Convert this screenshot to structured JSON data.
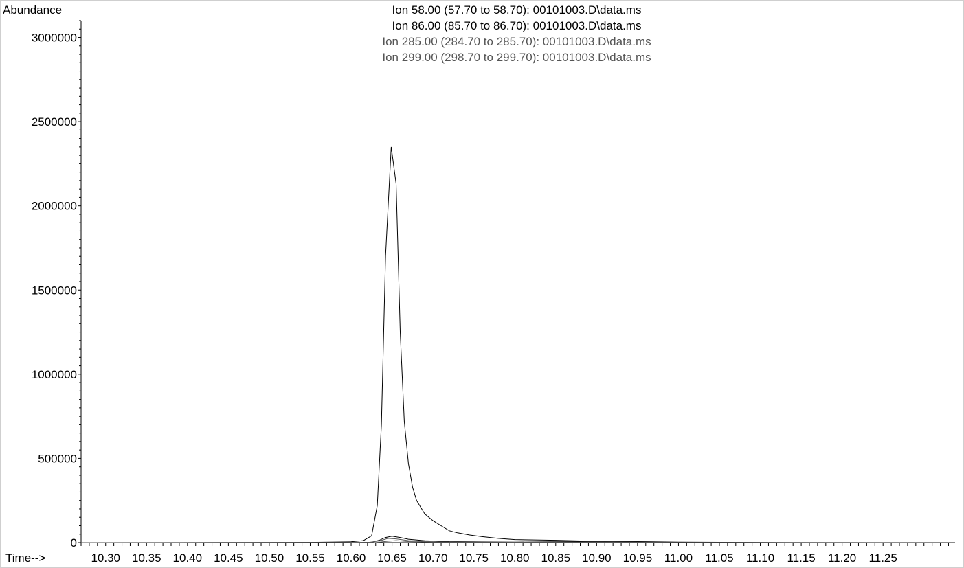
{
  "chart_data": {
    "type": "line",
    "ylabel": "Abundance",
    "xlabel": "Time-->",
    "xlim": [
      10.27,
      11.338
    ],
    "ylim": [
      0,
      3100000
    ],
    "x_ticks": [
      "10.30",
      "10.35",
      "10.40",
      "10.45",
      "10.50",
      "10.55",
      "10.60",
      "10.65",
      "10.70",
      "10.75",
      "10.80",
      "10.85",
      "10.90",
      "10.95",
      "11.00",
      "11.05",
      "11.10",
      "11.15",
      "11.20",
      "11.25"
    ],
    "y_ticks": [
      "0",
      "500000",
      "1000000",
      "1500000",
      "2000000",
      "2500000",
      "3000000"
    ],
    "grid": false,
    "legend_entries": [
      {
        "label": "Ion  58.00 (57.70 to 58.70): 00101003.D\\data.ms",
        "color": "#000000"
      },
      {
        "label": "Ion  86.00 (85.70 to 86.70): 00101003.D\\data.ms",
        "color": "#000000"
      },
      {
        "label": "Ion 285.00 (284.70 to 285.70): 00101003.D\\data.ms",
        "color": "#555555"
      },
      {
        "label": "Ion 299.00 (298.70 to 299.70): 00101003.D\\data.ms",
        "color": "#555555"
      }
    ],
    "series": [
      {
        "color": "#000000",
        "points": [
          [
            10.27,
            0
          ],
          [
            10.4,
            500
          ],
          [
            10.5,
            800
          ],
          [
            10.55,
            1500
          ],
          [
            10.6,
            5000
          ],
          [
            10.615,
            12000
          ],
          [
            10.625,
            40000
          ],
          [
            10.632,
            220000
          ],
          [
            10.637,
            700000
          ],
          [
            10.642,
            1700000
          ],
          [
            10.649,
            2350000
          ],
          [
            10.655,
            2130000
          ],
          [
            10.66,
            1250000
          ],
          [
            10.665,
            720000
          ],
          [
            10.67,
            470000
          ],
          [
            10.675,
            330000
          ],
          [
            10.68,
            250000
          ],
          [
            10.69,
            170000
          ],
          [
            10.7,
            130000
          ],
          [
            10.71,
            100000
          ],
          [
            10.72,
            70000
          ],
          [
            10.73,
            58000
          ],
          [
            10.745,
            45000
          ],
          [
            10.76,
            35000
          ],
          [
            10.78,
            25000
          ],
          [
            10.8,
            18000
          ],
          [
            10.85,
            14000
          ],
          [
            10.88,
            10000
          ],
          [
            10.91,
            9000
          ],
          [
            10.95,
            6000
          ],
          [
            11.0,
            3000
          ],
          [
            11.05,
            2000
          ],
          [
            11.1,
            1000
          ],
          [
            11.2,
            500
          ],
          [
            11.338,
            500
          ]
        ]
      },
      {
        "color": "#000000",
        "points": [
          [
            10.27,
            0
          ],
          [
            10.6,
            500
          ],
          [
            10.625,
            2000
          ],
          [
            10.635,
            15000
          ],
          [
            10.642,
            30000
          ],
          [
            10.65,
            38000
          ],
          [
            10.66,
            30000
          ],
          [
            10.67,
            20000
          ],
          [
            10.69,
            11000
          ],
          [
            10.72,
            6000
          ],
          [
            10.76,
            4000
          ],
          [
            10.8,
            3000
          ],
          [
            10.9,
            7000
          ],
          [
            10.95,
            3000
          ],
          [
            11.0,
            1000
          ],
          [
            11.338,
            0
          ]
        ]
      },
      {
        "color": "#555555",
        "points": [
          [
            10.27,
            0
          ],
          [
            10.62,
            500
          ],
          [
            10.635,
            10000
          ],
          [
            10.645,
            25000
          ],
          [
            10.655,
            22000
          ],
          [
            10.67,
            12000
          ],
          [
            10.7,
            5000
          ],
          [
            10.75,
            2000
          ],
          [
            10.85,
            1500
          ],
          [
            10.92,
            4000
          ],
          [
            11.0,
            500
          ],
          [
            11.338,
            0
          ]
        ]
      },
      {
        "color": "#555555",
        "points": [
          [
            10.27,
            0
          ],
          [
            10.63,
            500
          ],
          [
            10.645,
            8000
          ],
          [
            10.655,
            12000
          ],
          [
            10.67,
            6000
          ],
          [
            10.7,
            2500
          ],
          [
            10.8,
            1000
          ],
          [
            10.92,
            2000
          ],
          [
            11.0,
            300
          ],
          [
            11.338,
            0
          ]
        ]
      }
    ]
  }
}
